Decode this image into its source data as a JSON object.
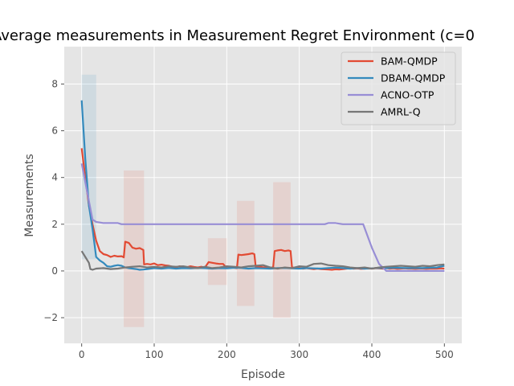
{
  "chart_data": {
    "type": "line",
    "title": "Average measurements in Measurement Regret Environment (c=0",
    "xlabel": "Episode",
    "ylabel": "Measurements",
    "xlim": [
      -24,
      524
    ],
    "ylim": [
      -3.1,
      9.6
    ],
    "xticks": [
      0,
      100,
      200,
      300,
      400,
      500
    ],
    "yticks": [
      -2,
      0,
      2,
      4,
      6,
      8
    ],
    "ytick_labels": [
      "−2",
      "0",
      "2",
      "4",
      "6",
      "8"
    ],
    "grid": true,
    "legend_position": "top-right",
    "series": [
      {
        "name": "BAM-QMDP",
        "color": "#e24a33",
        "x": [
          0,
          5,
          10,
          15,
          20,
          25,
          30,
          35,
          40,
          45,
          50,
          55,
          58,
          60,
          65,
          70,
          75,
          80,
          85,
          86,
          90,
          95,
          100,
          105,
          110,
          115,
          120,
          125,
          130,
          135,
          140,
          145,
          150,
          155,
          160,
          165,
          170,
          175,
          180,
          185,
          190,
          195,
          200,
          205,
          210,
          214,
          216,
          220,
          225,
          230,
          235,
          238,
          240,
          245,
          250,
          255,
          260,
          264,
          266,
          270,
          275,
          280,
          285,
          288,
          290,
          295,
          300,
          305,
          310,
          315,
          320,
          325,
          330,
          335,
          340,
          345,
          350,
          355,
          360,
          365,
          370,
          375,
          380,
          385,
          390,
          395,
          400,
          405,
          410,
          415,
          420,
          425,
          430,
          435,
          440,
          445,
          450,
          455,
          460,
          465,
          470,
          475,
          480,
          485,
          490,
          495,
          500
        ],
        "y": [
          5.25,
          4.0,
          2.8,
          2.0,
          1.3,
          0.85,
          0.72,
          0.68,
          0.6,
          0.65,
          0.62,
          0.63,
          0.58,
          1.25,
          1.2,
          1.0,
          0.95,
          0.98,
          0.9,
          0.28,
          0.3,
          0.28,
          0.32,
          0.25,
          0.27,
          0.24,
          0.22,
          0.18,
          0.15,
          0.2,
          0.18,
          0.16,
          0.2,
          0.17,
          0.15,
          0.18,
          0.15,
          0.38,
          0.35,
          0.32,
          0.3,
          0.3,
          0.12,
          0.15,
          0.14,
          0.12,
          0.7,
          0.68,
          0.7,
          0.72,
          0.75,
          0.72,
          0.15,
          0.18,
          0.16,
          0.15,
          0.14,
          0.15,
          0.85,
          0.88,
          0.9,
          0.85,
          0.88,
          0.85,
          0.15,
          0.13,
          0.12,
          0.1,
          0.12,
          0.1,
          0.08,
          0.1,
          0.08,
          0.07,
          0.06,
          0.05,
          0.07,
          0.06,
          0.08,
          0.1,
          0.12,
          0.1,
          0.11,
          0.09,
          0.1,
          0.11,
          0.1,
          0.12,
          0.11,
          0.1,
          0.12,
          0.1,
          0.11,
          0.09,
          0.1,
          0.11,
          0.1,
          0.1,
          0.09,
          0.1,
          0.1,
          0.09,
          0.1,
          0.1,
          0.1,
          0.11,
          0.1
        ]
      },
      {
        "name": "DBAM-QMDP",
        "color": "#348abd",
        "x": [
          0,
          5,
          10,
          15,
          20,
          25,
          30,
          35,
          40,
          45,
          50,
          55,
          60,
          65,
          70,
          75,
          80,
          85,
          90,
          95,
          100,
          110,
          120,
          130,
          140,
          150,
          160,
          170,
          180,
          190,
          200,
          210,
          220,
          230,
          240,
          250,
          260,
          270,
          280,
          290,
          300,
          310,
          320,
          330,
          340,
          350,
          360,
          370,
          380,
          390,
          400,
          410,
          420,
          430,
          440,
          450,
          460,
          470,
          480,
          490,
          500
        ],
        "y": [
          7.3,
          4.8,
          2.8,
          1.8,
          0.6,
          0.45,
          0.35,
          0.2,
          0.18,
          0.22,
          0.25,
          0.22,
          0.15,
          0.12,
          0.1,
          0.08,
          0.05,
          0.06,
          0.08,
          0.1,
          0.12,
          0.1,
          0.13,
          0.1,
          0.12,
          0.11,
          0.13,
          0.12,
          0.1,
          0.12,
          0.11,
          0.14,
          0.13,
          0.1,
          0.12,
          0.11,
          0.1,
          0.12,
          0.13,
          0.11,
          0.1,
          0.12,
          0.11,
          0.1,
          0.12,
          0.14,
          0.12,
          0.1,
          0.12,
          0.1,
          0.11,
          0.13,
          0.12,
          0.14,
          0.13,
          0.12,
          0.13,
          0.12,
          0.14,
          0.15,
          0.22
        ]
      },
      {
        "name": "ACNO-OTP",
        "color": "#988ed5",
        "x": [
          0,
          5,
          10,
          15,
          20,
          30,
          40,
          50,
          55,
          100,
          200,
          300,
          335,
          340,
          350,
          360,
          370,
          388,
          400,
          410,
          420,
          450,
          500
        ],
        "y": [
          4.6,
          3.8,
          3.0,
          2.2,
          2.1,
          2.05,
          2.05,
          2.05,
          2.0,
          2.0,
          2.0,
          2.0,
          2.0,
          2.05,
          2.05,
          2.0,
          2.0,
          2.0,
          1.0,
          0.3,
          0.0,
          0.0,
          0.0
        ]
      },
      {
        "name": "AMRL-Q",
        "color": "#777777",
        "x": [
          0,
          5,
          10,
          12,
          15,
          20,
          30,
          40,
          50,
          60,
          70,
          80,
          90,
          100,
          110,
          120,
          130,
          140,
          150,
          160,
          170,
          180,
          190,
          200,
          210,
          220,
          230,
          240,
          250,
          260,
          270,
          280,
          290,
          300,
          310,
          320,
          330,
          340,
          350,
          360,
          370,
          380,
          390,
          400,
          410,
          420,
          430,
          440,
          450,
          460,
          470,
          480,
          490,
          500
        ],
        "y": [
          0.85,
          0.6,
          0.35,
          0.08,
          0.05,
          0.1,
          0.12,
          0.08,
          0.1,
          0.15,
          0.18,
          0.2,
          0.15,
          0.18,
          0.15,
          0.2,
          0.18,
          0.2,
          0.15,
          0.12,
          0.18,
          0.12,
          0.15,
          0.2,
          0.18,
          0.15,
          0.2,
          0.22,
          0.25,
          0.15,
          0.1,
          0.15,
          0.12,
          0.2,
          0.18,
          0.3,
          0.32,
          0.25,
          0.22,
          0.2,
          0.15,
          0.12,
          0.15,
          0.1,
          0.15,
          0.18,
          0.2,
          0.22,
          0.2,
          0.18,
          0.22,
          0.2,
          0.25,
          0.28
        ]
      }
    ],
    "bands": [
      {
        "series": "BAM-QMDP",
        "color": "#e24a33",
        "opacity": 0.12,
        "x": [
          58,
          86
        ],
        "lo": -2.4,
        "hi": 4.3
      },
      {
        "series": "BAM-QMDP",
        "color": "#e24a33",
        "opacity": 0.12,
        "x": [
          214,
          238
        ],
        "lo": -1.5,
        "hi": 3.0
      },
      {
        "series": "BAM-QMDP",
        "color": "#e24a33",
        "opacity": 0.12,
        "x": [
          264,
          288
        ],
        "lo": -2.0,
        "hi": 3.8
      },
      {
        "series": "BAM-QMDP",
        "color": "#e24a33",
        "opacity": 0.12,
        "x": [
          174,
          200
        ],
        "lo": -0.6,
        "hi": 1.4
      },
      {
        "series": "DBAM-QMDP",
        "color": "#348abd",
        "opacity": 0.12,
        "x": [
          0,
          20
        ],
        "lo": 0.5,
        "hi": 8.4
      }
    ]
  }
}
